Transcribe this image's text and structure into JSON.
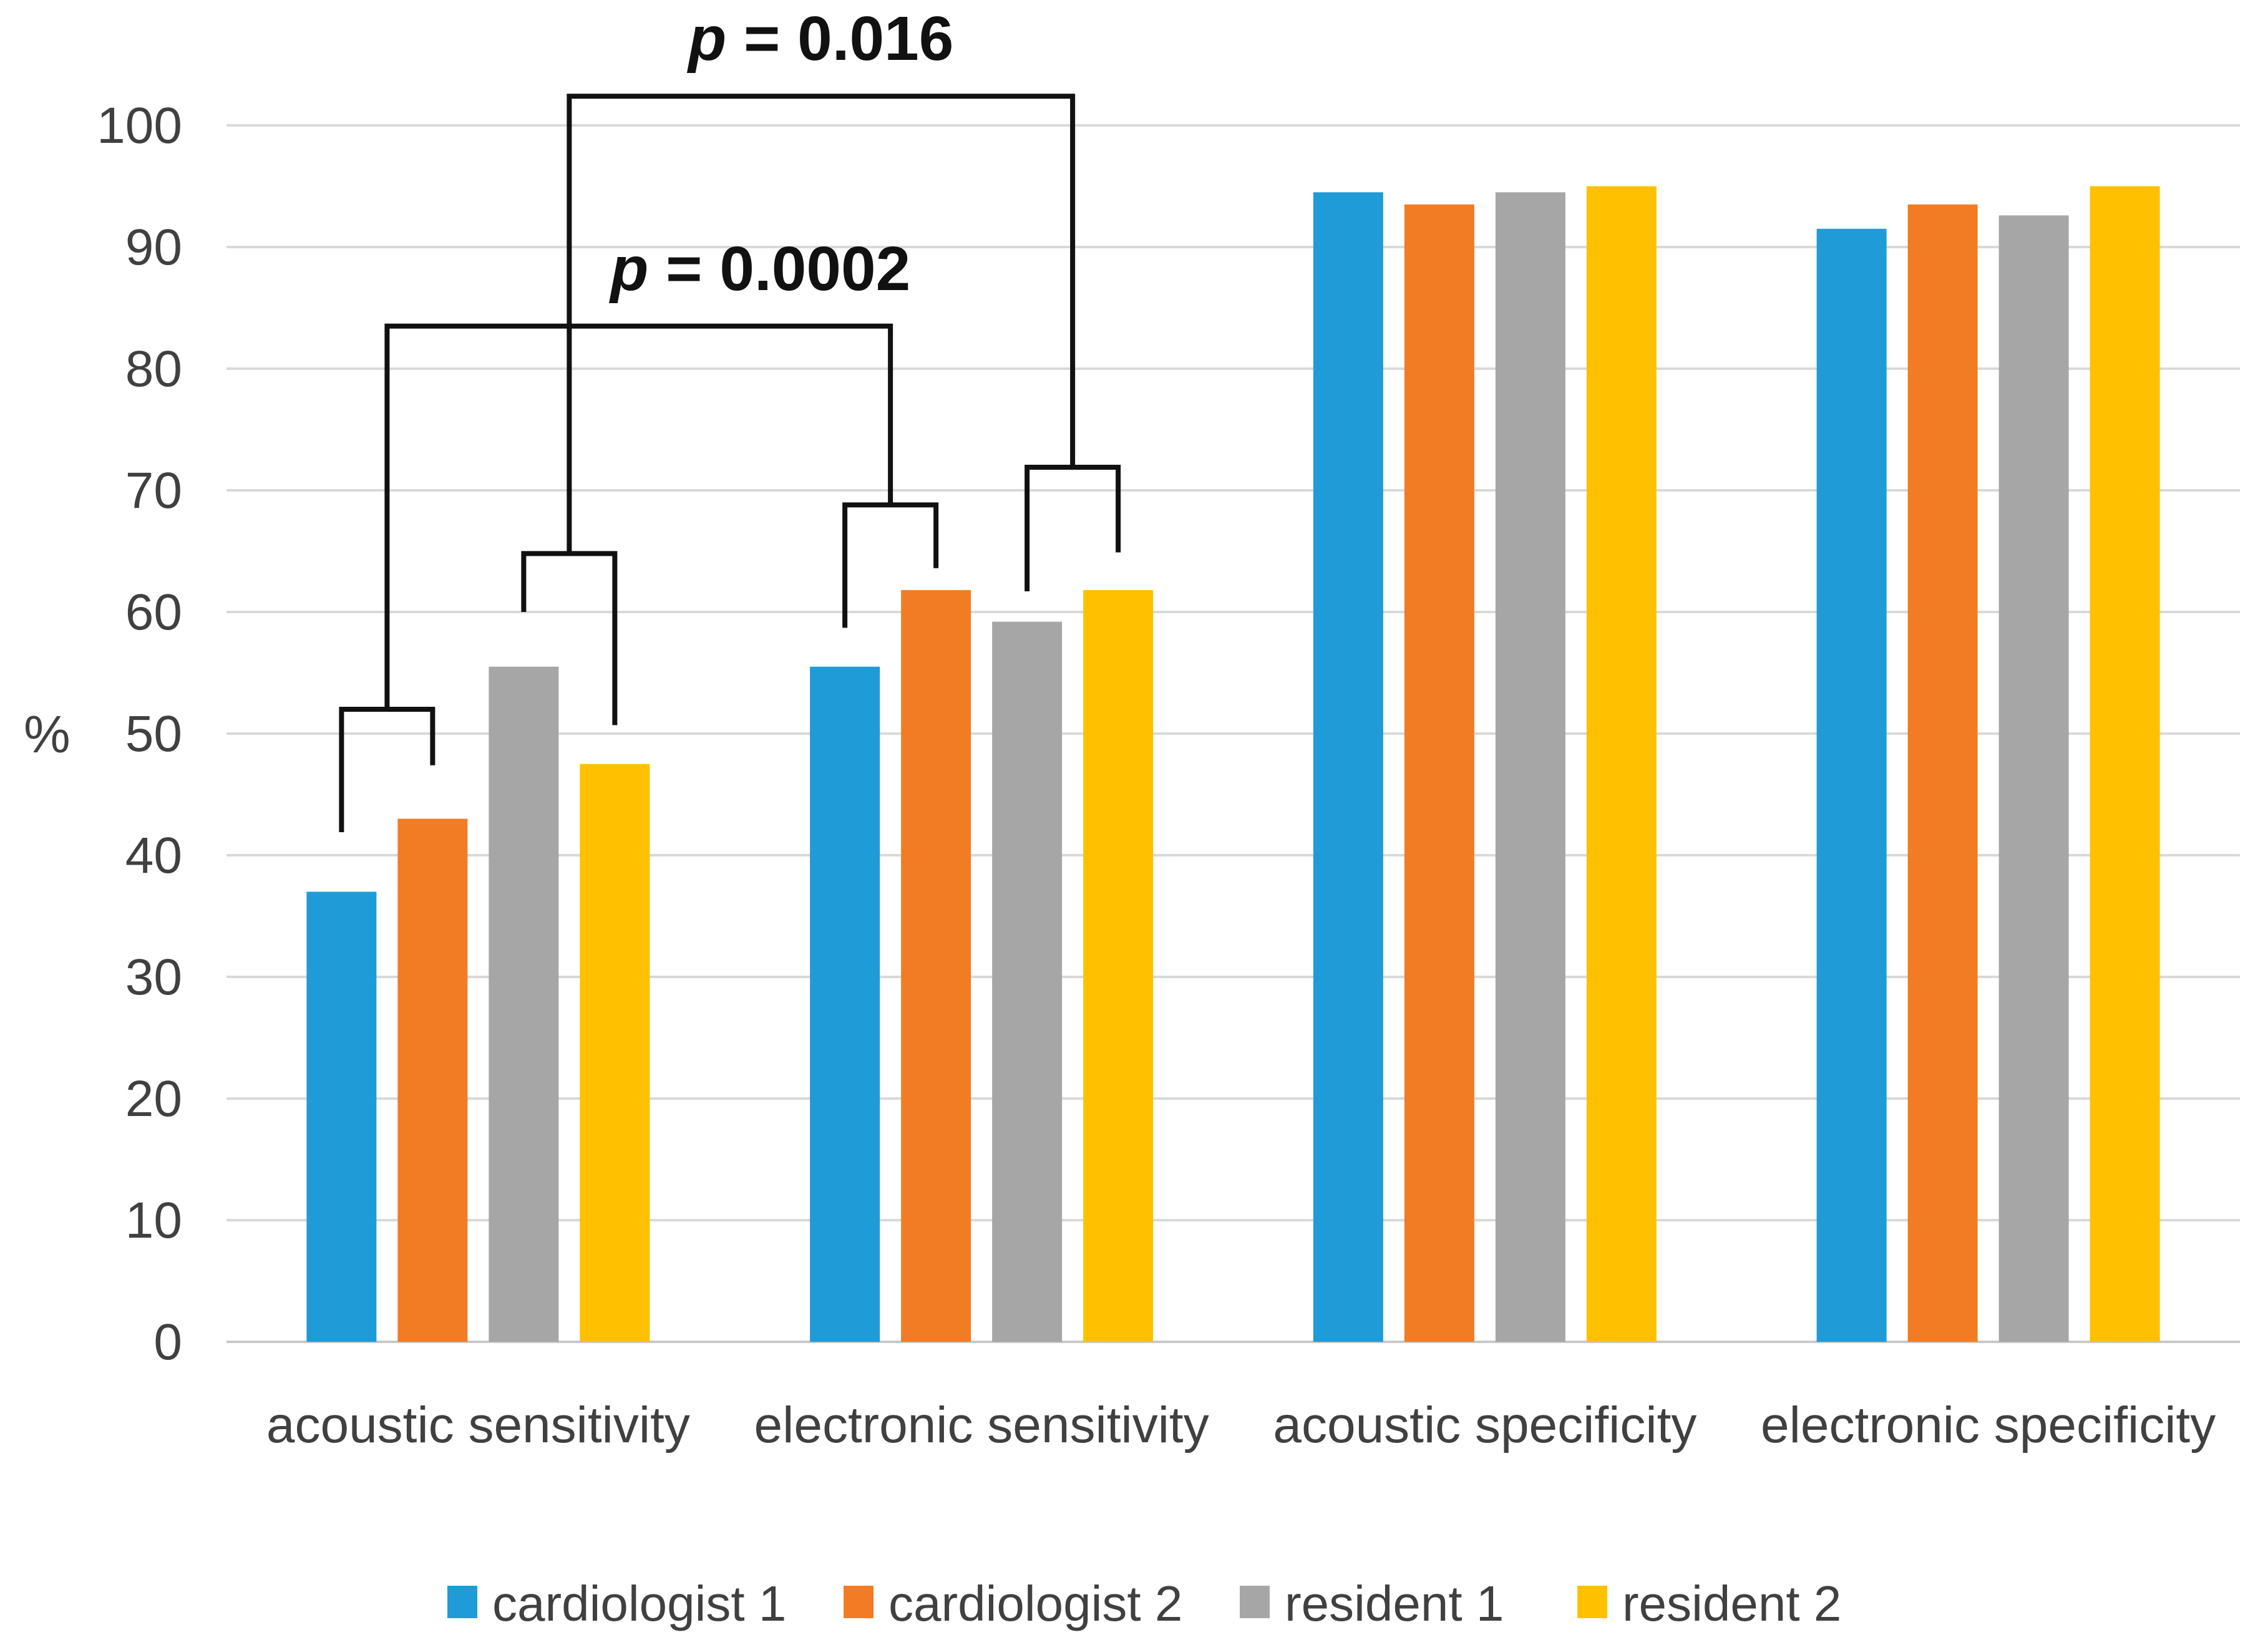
{
  "chart_data": {
    "type": "bar",
    "title": "",
    "xlabel": "",
    "ylabel": "%",
    "ylim": [
      0,
      100
    ],
    "ytick_step": 10,
    "yticks": [
      0,
      10,
      20,
      30,
      40,
      50,
      60,
      70,
      80,
      90,
      100
    ],
    "grid": true,
    "legend_position": "bottom",
    "categories": [
      "acoustic sensitivity",
      "electronic sensitivity",
      "acoustic specificity",
      "electronic specificity"
    ],
    "series": [
      {
        "name": "cardiologist 1",
        "color": "#1F9BD7",
        "values": [
          37.0,
          55.5,
          94.5,
          91.5
        ]
      },
      {
        "name": "cardiologist 2",
        "color": "#F17C24",
        "values": [
          43.0,
          61.8,
          93.5,
          93.5
        ]
      },
      {
        "name": "resident 1",
        "color": "#A6A6A6",
        "values": [
          55.5,
          59.2,
          94.5,
          92.6
        ]
      },
      {
        "name": "resident 2",
        "color": "#FFC000",
        "values": [
          47.5,
          61.8,
          95.0,
          95.0
        ]
      }
    ],
    "annotations": {
      "pair_brackets": [
        {
          "id": "acoustic-cardiologists",
          "group": 0,
          "bars": [
            0,
            1
          ],
          "top": 52.0,
          "left_drop_to": 41.9,
          "right_drop_to": 47.4
        },
        {
          "id": "acoustic-residents",
          "group": 0,
          "bars": [
            2,
            3
          ],
          "top": 64.8,
          "left_drop_to": 60.0,
          "right_drop_to": 50.7
        },
        {
          "id": "electronic-cardiologists",
          "group": 1,
          "bars": [
            0,
            1
          ],
          "top": 68.8,
          "left_drop_to": 58.7,
          "right_drop_to": 63.6
        },
        {
          "id": "electronic-residents",
          "group": 1,
          "bars": [
            2,
            3
          ],
          "top": 71.9,
          "left_drop_to": 61.7,
          "right_drop_to": 64.9
        }
      ],
      "p_brackets": [
        {
          "label_prefix": "p",
          "label_rest": " = 0.0002",
          "from": "acoustic-cardiologists",
          "to": "electronic-cardiologists",
          "top": 83.5,
          "label_dx": 195
        },
        {
          "label_prefix": "p",
          "label_rest": " = 0.016",
          "from": "acoustic-residents",
          "to": "electronic-residents",
          "top": 102.4,
          "label_dx": 0
        }
      ]
    },
    "colors": {
      "gridline": "#D9D9D9",
      "axis_line": "#C9C9C9",
      "bracket": "#111111",
      "tick_text": "#404040",
      "annotation_text": "#111111",
      "background": "#FFFFFF"
    }
  }
}
